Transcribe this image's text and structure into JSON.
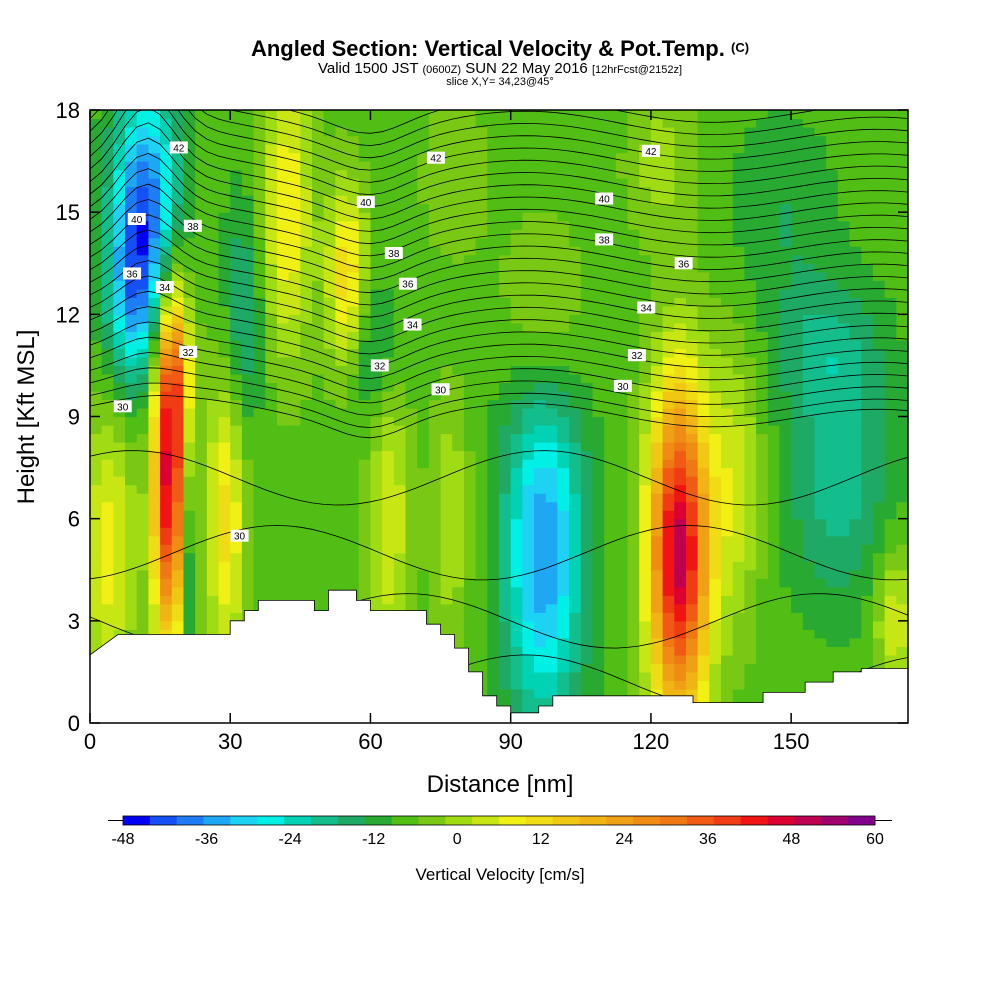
{
  "header": {
    "title": "Angled Section: Vertical Velocity & Pot.Temp.",
    "title_unit": "(C)",
    "valid_prefix": "Valid 1500 JST",
    "valid_z": "(0600Z)",
    "valid_date": "SUN 22 May 2016",
    "forecast": "[12hrFcst@2152z]",
    "slice": "slice X,Y= 34,23@45°"
  },
  "chart_data": {
    "type": "heatmap",
    "xlabel": "Distance [nm]",
    "ylabel": "Height [Kft MSL]",
    "xlim": [
      0,
      175
    ],
    "ylim": [
      0,
      18
    ],
    "x_ticks": [
      "0",
      "30",
      "60",
      "90",
      "120",
      "150"
    ],
    "y_ticks": [
      "0",
      "3",
      "6",
      "9",
      "12",
      "15",
      "18"
    ],
    "x_tick_values": [
      0,
      30,
      60,
      90,
      120,
      150
    ],
    "y_tick_values": [
      0,
      3,
      6,
      9,
      12,
      15,
      18
    ],
    "colorbar": {
      "title": "Vertical Velocity [cm/s]",
      "labels": [
        "-48",
        "-36",
        "-24",
        "-12",
        "0",
        "12",
        "24",
        "36",
        "48",
        "60"
      ],
      "min": -48,
      "max": 60,
      "step": 4,
      "colors": [
        "#0000f4",
        "#1450f4",
        "#1e7cf4",
        "#1ea8f4",
        "#1ed2f4",
        "#00f0e6",
        "#00d2b4",
        "#14be8c",
        "#1eaa64",
        "#28aa32",
        "#50be14",
        "#78c814",
        "#a0dc14",
        "#c8e614",
        "#f0f014",
        "#f0dc14",
        "#f0c814",
        "#f0b414",
        "#f0a014",
        "#f08c14",
        "#f07814",
        "#f05a14",
        "#f03c14",
        "#f01414",
        "#dc0032",
        "#be0050",
        "#a0006e",
        "#82008c"
      ]
    },
    "terrain_kft": [
      [
        0,
        2
      ],
      [
        3,
        2.3
      ],
      [
        6,
        2.6
      ],
      [
        30,
        2.6
      ],
      [
        30,
        3
      ],
      [
        33,
        3
      ],
      [
        33,
        3.3
      ],
      [
        36,
        3.3
      ],
      [
        36,
        3.6
      ],
      [
        48,
        3.6
      ],
      [
        48,
        3.3
      ],
      [
        51,
        3.3
      ],
      [
        51,
        3.9
      ],
      [
        57,
        3.9
      ],
      [
        57,
        3.6
      ],
      [
        60,
        3.6
      ],
      [
        60,
        3.3
      ],
      [
        72,
        3.3
      ],
      [
        72,
        2.9
      ],
      [
        75,
        2.9
      ],
      [
        75,
        2.6
      ],
      [
        78,
        2.6
      ],
      [
        78,
        2.2
      ],
      [
        81,
        2.2
      ],
      [
        81,
        1.5
      ],
      [
        84,
        1.5
      ],
      [
        84,
        0.8
      ],
      [
        87,
        0.8
      ],
      [
        87,
        0.5
      ],
      [
        90,
        0.5
      ],
      [
        90,
        0.3
      ],
      [
        96,
        0.3
      ],
      [
        96,
        0.5
      ],
      [
        99,
        0.5
      ],
      [
        99,
        0.8
      ],
      [
        129,
        0.8
      ],
      [
        129,
        0.6
      ],
      [
        144,
        0.6
      ],
      [
        144,
        0.9
      ],
      [
        153,
        0.9
      ],
      [
        153,
        1.2
      ],
      [
        159,
        1.2
      ],
      [
        159,
        1.5
      ],
      [
        165,
        1.5
      ],
      [
        165,
        1.6
      ],
      [
        175,
        1.6
      ]
    ],
    "blobs": [
      {
        "x": 12,
        "y": 15.5,
        "sx": 5,
        "sy": 2.5,
        "v": -30
      },
      {
        "x": 9,
        "y": 12.5,
        "sx": 4,
        "sy": 2,
        "v": -22
      },
      {
        "x": 17,
        "y": 6.5,
        "sx": 2.5,
        "sy": 3,
        "v": 52
      },
      {
        "x": 18,
        "y": 10.5,
        "sx": 2.5,
        "sy": 2,
        "v": 30
      },
      {
        "x": 21,
        "y": 5,
        "sx": 1.2,
        "sy": 3,
        "v": -14
      },
      {
        "x": 4,
        "y": 5,
        "sx": 4,
        "sy": 3,
        "v": 16
      },
      {
        "x": 29,
        "y": 6,
        "sx": 3,
        "sy": 3,
        "v": 20
      },
      {
        "x": 42,
        "y": 15,
        "sx": 4,
        "sy": 3,
        "v": 18
      },
      {
        "x": 33,
        "y": 12,
        "sx": 3,
        "sy": 2.5,
        "v": -12
      },
      {
        "x": 55,
        "y": 13,
        "sx": 3,
        "sy": 2,
        "v": 22
      },
      {
        "x": 60,
        "y": 11,
        "sx": 4,
        "sy": 1.5,
        "v": -10
      },
      {
        "x": 64,
        "y": 6,
        "sx": 3,
        "sy": 3,
        "v": 14
      },
      {
        "x": 77,
        "y": 6,
        "sx": 3,
        "sy": 2.5,
        "v": 10
      },
      {
        "x": 97,
        "y": 5,
        "sx": 6,
        "sy": 3.5,
        "v": -30
      },
      {
        "x": 97,
        "y": 12,
        "sx": 6,
        "sy": 2,
        "v": 8
      },
      {
        "x": 126,
        "y": 5,
        "sx": 4.5,
        "sy": 3.5,
        "v": 60
      },
      {
        "x": 138,
        "y": 7,
        "sx": 4,
        "sy": 3,
        "v": 12
      },
      {
        "x": 160,
        "y": 7,
        "sx": 8,
        "sy": 2.5,
        "v": -12
      },
      {
        "x": 172,
        "y": 3,
        "sx": 3,
        "sy": 1.5,
        "v": 14
      },
      {
        "x": 122,
        "y": 16.5,
        "sx": 5,
        "sy": 1.5,
        "v": 8
      },
      {
        "x": 78,
        "y": 16,
        "sx": 6,
        "sy": 2,
        "v": 4
      },
      {
        "x": 148,
        "y": 15,
        "sx": 8,
        "sy": 2,
        "v": -6
      },
      {
        "x": 158,
        "y": 11,
        "sx": 8,
        "sy": 1.5,
        "v": -10
      }
    ],
    "contour_labels": [
      {
        "text": "42",
        "x": 19,
        "y": 16.9
      },
      {
        "text": "42",
        "x": 74,
        "y": 16.6
      },
      {
        "text": "42",
        "x": 120,
        "y": 16.8
      },
      {
        "text": "40",
        "x": 10,
        "y": 14.8
      },
      {
        "text": "40",
        "x": 59,
        "y": 15.3
      },
      {
        "text": "40",
        "x": 110,
        "y": 15.4
      },
      {
        "text": "38",
        "x": 22,
        "y": 14.6
      },
      {
        "text": "38",
        "x": 65,
        "y": 13.8
      },
      {
        "text": "38",
        "x": 110,
        "y": 14.2
      },
      {
        "text": "36",
        "x": 127,
        "y": 13.5
      },
      {
        "text": "36",
        "x": 68,
        "y": 12.9
      },
      {
        "text": "36",
        "x": 9,
        "y": 13.2
      },
      {
        "text": "34",
        "x": 16,
        "y": 12.8
      },
      {
        "text": "34",
        "x": 69,
        "y": 11.7
      },
      {
        "text": "34",
        "x": 119,
        "y": 12.2
      },
      {
        "text": "32",
        "x": 21,
        "y": 10.9
      },
      {
        "text": "32",
        "x": 62,
        "y": 10.5
      },
      {
        "text": "32",
        "x": 117,
        "y": 10.8
      },
      {
        "text": "30",
        "x": 7,
        "y": 9.3
      },
      {
        "text": "30",
        "x": 75,
        "y": 9.8
      },
      {
        "text": "30",
        "x": 114,
        "y": 9.9
      },
      {
        "text": "30",
        "x": 32,
        "y": 5.5
      }
    ]
  }
}
